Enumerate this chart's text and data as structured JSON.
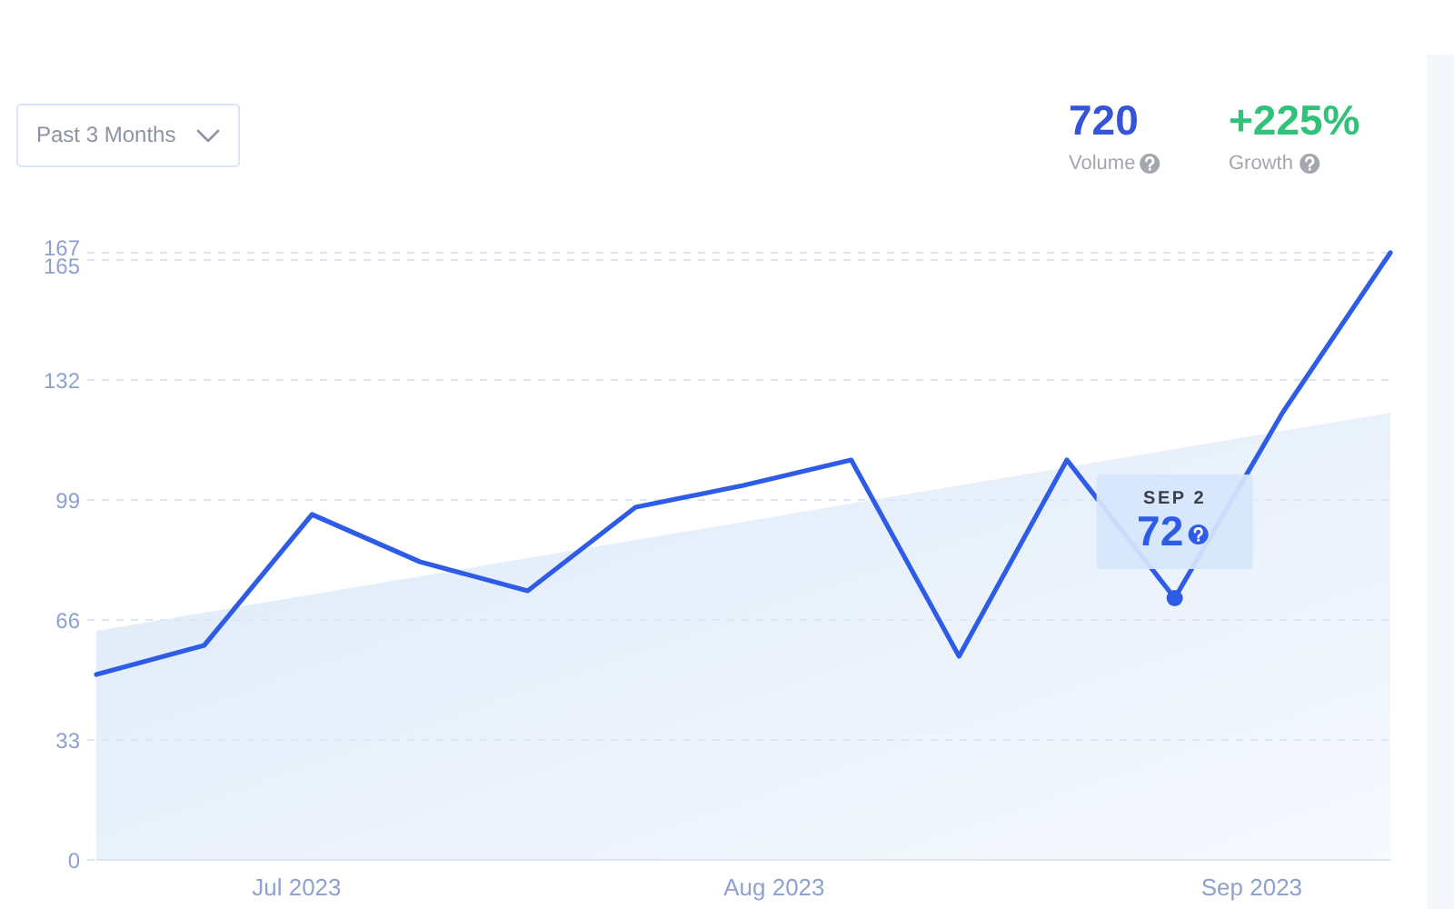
{
  "chart_data": {
    "type": "line",
    "annotations": [
      "Past 3 Months",
      "720",
      "Volume",
      "+225%",
      "Growth",
      "SEP 2"
    ],
    "x": [
      "2023-06-24",
      "2023-07-01",
      "2023-07-08",
      "2023-07-15",
      "2023-07-22",
      "2023-07-29",
      "2023-08-05",
      "2023-08-12",
      "2023-08-19",
      "2023-08-26",
      "2023-09-02",
      "2023-09-09",
      "2023-09-16"
    ],
    "xlim": [
      "2023-06-24",
      "2023-09-16"
    ],
    "xticks": [
      {
        "value": "2023-07-07",
        "label": "Jul 2023"
      },
      {
        "value": "2023-08-07",
        "label": "Aug 2023"
      },
      {
        "value": "2023-09-07",
        "label": "Sep 2023"
      }
    ],
    "ylim": [
      0,
      167
    ],
    "yticks": [
      0,
      33,
      66,
      99,
      132,
      165,
      167
    ],
    "grid": "y",
    "series": [
      {
        "type": "area",
        "color": "#dce9f9",
        "x": [
          "2023-06-24",
          "2023-09-16"
        ],
        "values": [
          63,
          123
        ]
      },
      {
        "type": "line",
        "color": "#2f5ce6",
        "values": [
          51,
          59,
          95,
          82,
          74,
          97,
          103,
          110,
          56,
          110,
          72,
          123,
          167
        ],
        "value_labels": [
          null,
          null,
          null,
          null,
          null,
          null,
          null,
          null,
          null,
          null,
          "72",
          null,
          null
        ]
      }
    ]
  }
}
